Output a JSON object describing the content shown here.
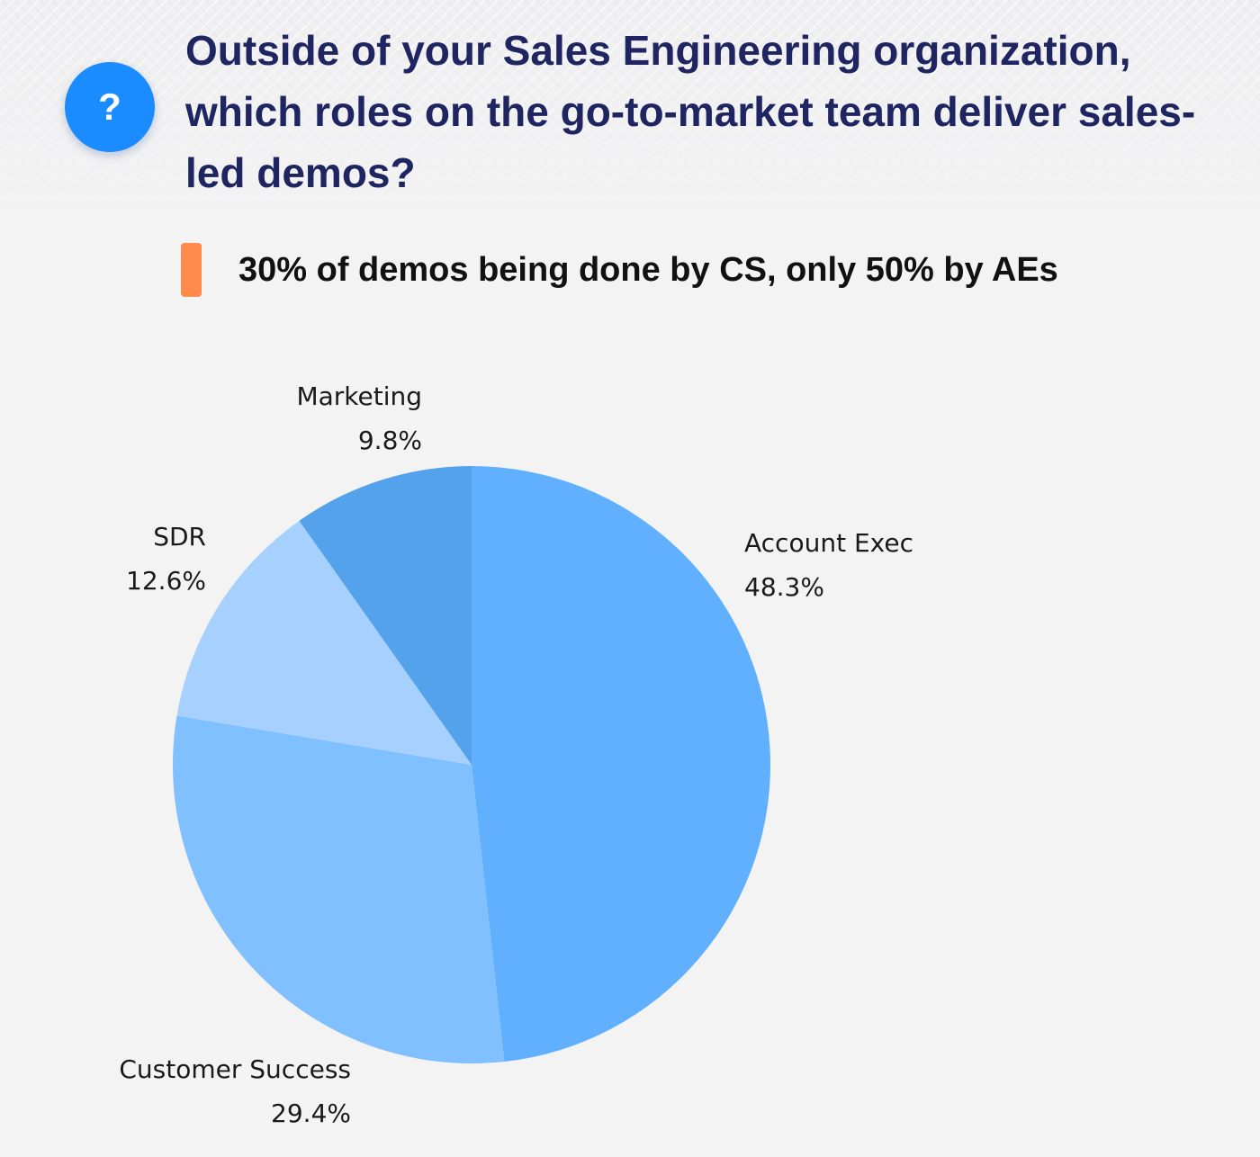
{
  "header": {
    "help_icon": "question-mark-icon",
    "help_glyph": "?",
    "question": "Outside of your Sales Engineering organization, which roles on the go-to-market team deliver sales-led demos?"
  },
  "callout": {
    "text": "30% of demos being done by CS, only 50% by AEs",
    "accent_color": "#ff8a4c"
  },
  "chart_data": {
    "type": "pie",
    "title": "",
    "slices": [
      {
        "label": "Account Exec",
        "value": 48.3,
        "value_label": "48.3%",
        "color": "#61b0fe"
      },
      {
        "label": "Customer Success",
        "value": 29.4,
        "value_label": "29.4%",
        "color": "#80c0fe"
      },
      {
        "label": "SDR",
        "value": 12.6,
        "value_label": "12.6%",
        "color": "#a6d1fe"
      },
      {
        "label": "Marketing",
        "value": 9.8,
        "value_label": "9.8%",
        "color": "#55a2ec"
      }
    ],
    "start_angle_deg": 0,
    "direction": "clockwise"
  }
}
